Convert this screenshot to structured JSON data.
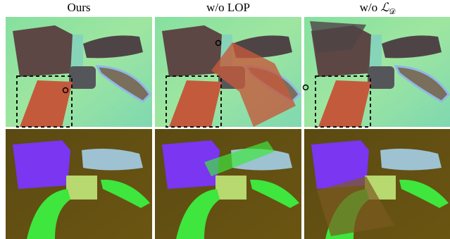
{
  "columns": [
    {
      "label": "Ours"
    },
    {
      "label": "w/o LOP"
    },
    {
      "label": {
        "prefix": "w/o",
        "symbol": "ℒ",
        "subscript": "𝒟"
      }
    }
  ]
}
